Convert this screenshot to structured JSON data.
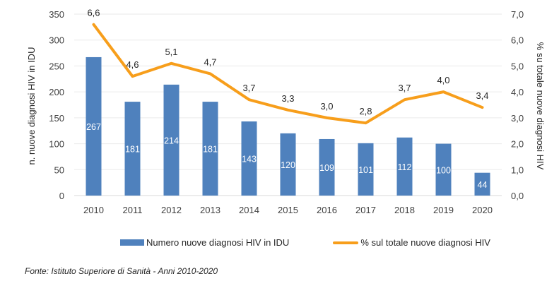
{
  "chart_data": {
    "type": "bar+line",
    "title": "",
    "categories": [
      "2010",
      "2011",
      "2012",
      "2013",
      "2014",
      "2015",
      "2016",
      "2017",
      "2018",
      "2019",
      "2020"
    ],
    "series": [
      {
        "name": "Numero nuove diagnosi HIV in IDU",
        "type": "bar",
        "axis": "left",
        "color": "#4f81bd",
        "values": [
          267,
          181,
          214,
          181,
          143,
          120,
          109,
          101,
          112,
          100,
          44
        ],
        "labels": [
          "267",
          "181",
          "214",
          "181",
          "143",
          "120",
          "109",
          "101",
          "112",
          "100",
          "44"
        ]
      },
      {
        "name": "% sul totale nuove diagnosi HIV",
        "type": "line",
        "axis": "right",
        "color": "#f79e1b",
        "values": [
          6.6,
          4.6,
          5.1,
          4.7,
          3.7,
          3.3,
          3.0,
          2.8,
          3.7,
          4.0,
          3.4
        ],
        "labels": [
          "6,6",
          "4,6",
          "5,1",
          "4,7",
          "3,7",
          "3,3",
          "3,0",
          "2,8",
          "3,7",
          "4,0",
          "3,4"
        ]
      }
    ],
    "ylabel": "n. nuove diagnosi HIV in IDU",
    "y2label": "% su totale nuove diagnosi HIV",
    "ylim": [
      0,
      350
    ],
    "y2lim": [
      0,
      7
    ],
    "yticks": [
      "0",
      "50",
      "100",
      "150",
      "200",
      "250",
      "300",
      "350"
    ],
    "y2ticks": [
      "0,0",
      "1,0",
      "2,0",
      "3,0",
      "4,0",
      "5,0",
      "6,0",
      "7,0"
    ],
    "grid": true,
    "legend_position": "bottom"
  },
  "legend": {
    "bar_label": "Numero nuove diagnosi HIV in IDU",
    "line_label": "% sul totale nuove diagnosi HIV"
  },
  "source": "Fonte: Istituto Superiore di Sanità - Anni 2010-2020"
}
